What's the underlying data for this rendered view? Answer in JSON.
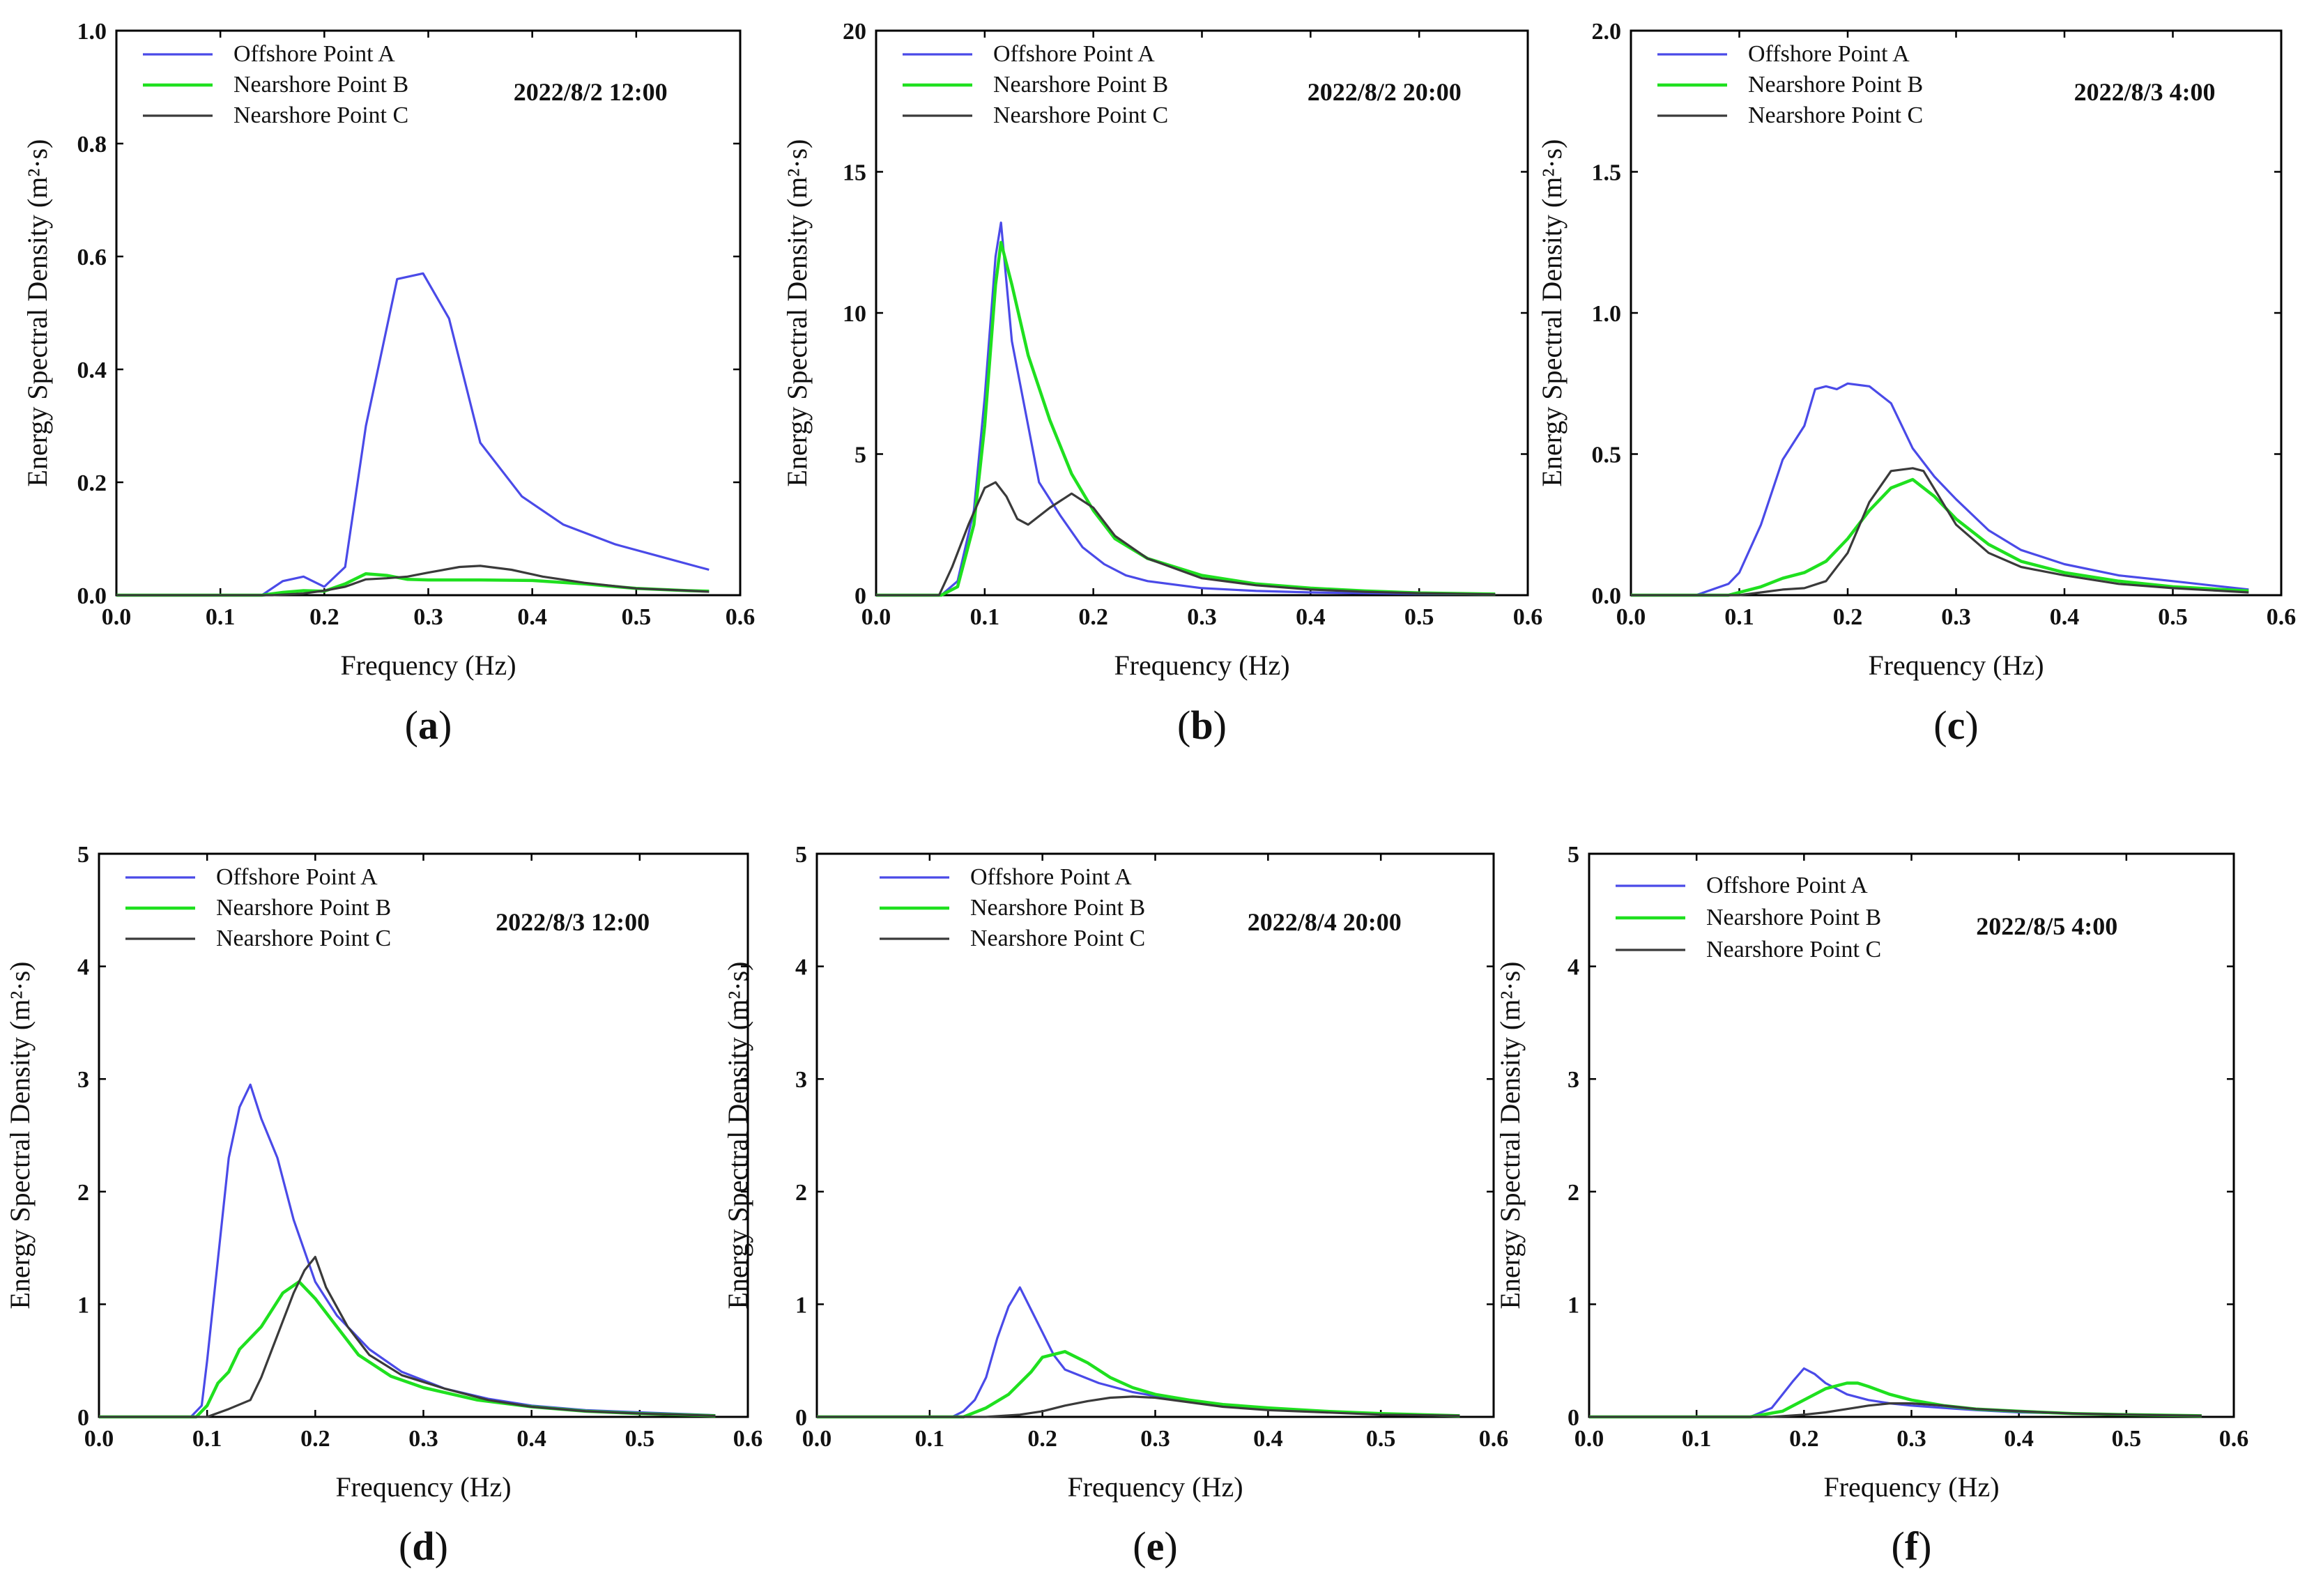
{
  "colors": {
    "series_a": "#4a4ae8",
    "series_b": "#1fe01f",
    "series_c": "#3a3a3a"
  },
  "legend": [
    "Offshore Point A",
    "Nearshore Point B",
    "Nearshore Point C"
  ],
  "chart_data": [
    {
      "type": "line",
      "panel": "a",
      "timestamp": "2022/8/2 12:00",
      "xlabel": "Frequency (Hz)",
      "ylabel": "Energy Spectral Density (m²·s)",
      "xlim": [
        0,
        0.6
      ],
      "ylim": [
        0,
        1.0
      ],
      "xticks": [
        "0.0",
        "0.1",
        "0.2",
        "0.3",
        "0.4",
        "0.5",
        "0.6"
      ],
      "yticks": [
        "0.0",
        "0.2",
        "0.4",
        "0.6",
        "0.8",
        "1.0"
      ],
      "series": [
        {
          "name": "Offshore Point A",
          "x": [
            0,
            0.14,
            0.16,
            0.18,
            0.2,
            0.22,
            0.24,
            0.27,
            0.295,
            0.32,
            0.35,
            0.39,
            0.43,
            0.48,
            0.52,
            0.56,
            0.57
          ],
          "y": [
            0,
            0,
            0.025,
            0.033,
            0.015,
            0.05,
            0.3,
            0.56,
            0.57,
            0.49,
            0.27,
            0.175,
            0.125,
            0.09,
            0.07,
            0.05,
            0.045
          ]
        },
        {
          "name": "Nearshore Point B",
          "x": [
            0,
            0.14,
            0.16,
            0.18,
            0.2,
            0.22,
            0.24,
            0.26,
            0.28,
            0.3,
            0.35,
            0.4,
            0.45,
            0.5,
            0.55,
            0.57
          ],
          "y": [
            0,
            0,
            0.005,
            0.008,
            0.007,
            0.02,
            0.038,
            0.035,
            0.028,
            0.027,
            0.027,
            0.026,
            0.02,
            0.012,
            0.008,
            0.007
          ]
        },
        {
          "name": "Nearshore Point C",
          "x": [
            0,
            0.15,
            0.18,
            0.2,
            0.22,
            0.24,
            0.26,
            0.28,
            0.3,
            0.33,
            0.35,
            0.38,
            0.41,
            0.45,
            0.5,
            0.55,
            0.57
          ],
          "y": [
            0,
            0,
            0.003,
            0.008,
            0.015,
            0.028,
            0.03,
            0.033,
            0.04,
            0.05,
            0.052,
            0.045,
            0.033,
            0.022,
            0.012,
            0.008,
            0.006
          ]
        }
      ]
    },
    {
      "type": "line",
      "panel": "b",
      "timestamp": "2022/8/2 20:00",
      "xlabel": "Frequency (Hz)",
      "ylabel": "Energy Spectral Density (m²·s)",
      "xlim": [
        0,
        0.6
      ],
      "ylim": [
        0,
        20
      ],
      "xticks": [
        "0.0",
        "0.1",
        "0.2",
        "0.3",
        "0.4",
        "0.5",
        "0.6"
      ],
      "yticks": [
        "0",
        "5",
        "10",
        "15",
        "20"
      ],
      "series": [
        {
          "name": "Offshore Point A",
          "x": [
            0,
            0.06,
            0.075,
            0.09,
            0.1,
            0.11,
            0.115,
            0.125,
            0.14,
            0.15,
            0.17,
            0.19,
            0.21,
            0.23,
            0.25,
            0.3,
            0.35,
            0.4,
            0.45,
            0.5,
            0.57
          ],
          "y": [
            0,
            0,
            0.5,
            3,
            7,
            12,
            13.2,
            9,
            6,
            4,
            2.8,
            1.7,
            1.1,
            0.7,
            0.5,
            0.25,
            0.15,
            0.1,
            0.07,
            0.05,
            0.03
          ]
        },
        {
          "name": "Nearshore Point B",
          "x": [
            0,
            0.06,
            0.075,
            0.09,
            0.1,
            0.11,
            0.115,
            0.125,
            0.14,
            0.16,
            0.18,
            0.2,
            0.22,
            0.25,
            0.3,
            0.35,
            0.4,
            0.45,
            0.5,
            0.57
          ],
          "y": [
            0,
            0,
            0.3,
            2.5,
            6,
            11,
            12.5,
            11,
            8.5,
            6.2,
            4.3,
            3,
            2,
            1.3,
            0.7,
            0.4,
            0.25,
            0.15,
            0.08,
            0.04
          ]
        },
        {
          "name": "Nearshore Point C",
          "x": [
            0,
            0.058,
            0.07,
            0.085,
            0.1,
            0.11,
            0.12,
            0.13,
            0.14,
            0.16,
            0.18,
            0.2,
            0.22,
            0.25,
            0.3,
            0.35,
            0.4,
            0.45,
            0.5,
            0.57
          ],
          "y": [
            0,
            0,
            1,
            2.5,
            3.8,
            4,
            3.5,
            2.7,
            2.5,
            3.1,
            3.6,
            3.1,
            2.1,
            1.3,
            0.6,
            0.35,
            0.2,
            0.12,
            0.07,
            0.03
          ]
        }
      ]
    },
    {
      "type": "line",
      "panel": "c",
      "timestamp": "2022/8/3 4:00",
      "xlabel": "Frequency (Hz)",
      "ylabel": "Energy Spectral Density (m²·s)",
      "xlim": [
        0,
        0.6
      ],
      "ylim": [
        0,
        2.0
      ],
      "xticks": [
        "0.0",
        "0.1",
        "0.2",
        "0.3",
        "0.4",
        "0.5",
        "0.6"
      ],
      "yticks": [
        "0.0",
        "0.5",
        "1.0",
        "1.5",
        "2.0"
      ],
      "series": [
        {
          "name": "Offshore Point A",
          "x": [
            0,
            0.06,
            0.09,
            0.1,
            0.12,
            0.14,
            0.16,
            0.17,
            0.18,
            0.19,
            0.2,
            0.22,
            0.24,
            0.26,
            0.28,
            0.3,
            0.33,
            0.36,
            0.4,
            0.45,
            0.5,
            0.57
          ],
          "y": [
            0,
            0,
            0.04,
            0.08,
            0.25,
            0.48,
            0.6,
            0.73,
            0.74,
            0.73,
            0.75,
            0.74,
            0.68,
            0.52,
            0.42,
            0.34,
            0.23,
            0.16,
            0.11,
            0.07,
            0.05,
            0.02
          ]
        },
        {
          "name": "Nearshore Point B",
          "x": [
            0,
            0.09,
            0.12,
            0.14,
            0.16,
            0.18,
            0.2,
            0.22,
            0.24,
            0.26,
            0.28,
            0.3,
            0.33,
            0.36,
            0.4,
            0.45,
            0.5,
            0.57
          ],
          "y": [
            0,
            0,
            0.03,
            0.06,
            0.08,
            0.12,
            0.2,
            0.3,
            0.38,
            0.41,
            0.35,
            0.27,
            0.18,
            0.12,
            0.08,
            0.05,
            0.03,
            0.015
          ]
        },
        {
          "name": "Nearshore Point C",
          "x": [
            0,
            0.1,
            0.14,
            0.16,
            0.18,
            0.2,
            0.22,
            0.24,
            0.26,
            0.27,
            0.3,
            0.33,
            0.36,
            0.4,
            0.45,
            0.5,
            0.57
          ],
          "y": [
            0,
            0,
            0.02,
            0.025,
            0.05,
            0.15,
            0.33,
            0.44,
            0.45,
            0.44,
            0.25,
            0.15,
            0.1,
            0.07,
            0.04,
            0.025,
            0.01
          ]
        }
      ]
    },
    {
      "type": "line",
      "panel": "d",
      "timestamp": "2022/8/3 12:00",
      "xlabel": "Frequency (Hz)",
      "ylabel": "Energy Spectral Density (m²·s)",
      "xlim": [
        0,
        0.6
      ],
      "ylim": [
        0,
        5
      ],
      "xticks": [
        "0.0",
        "0.1",
        "0.2",
        "0.3",
        "0.4",
        "0.5",
        "0.6"
      ],
      "yticks": [
        "0",
        "1",
        "2",
        "3",
        "4",
        "5"
      ],
      "series": [
        {
          "name": "Offshore Point A",
          "x": [
            0,
            0.085,
            0.095,
            0.1,
            0.11,
            0.12,
            0.13,
            0.14,
            0.15,
            0.165,
            0.18,
            0.2,
            0.22,
            0.25,
            0.28,
            0.32,
            0.36,
            0.4,
            0.45,
            0.5,
            0.57
          ],
          "y": [
            0,
            0,
            0.1,
            0.5,
            1.4,
            2.3,
            2.75,
            2.95,
            2.65,
            2.3,
            1.75,
            1.2,
            0.9,
            0.6,
            0.4,
            0.25,
            0.16,
            0.1,
            0.06,
            0.04,
            0.015
          ]
        },
        {
          "name": "Nearshore Point B",
          "x": [
            0,
            0.09,
            0.1,
            0.11,
            0.12,
            0.13,
            0.15,
            0.17,
            0.185,
            0.2,
            0.22,
            0.24,
            0.27,
            0.3,
            0.35,
            0.4,
            0.45,
            0.5,
            0.57
          ],
          "y": [
            0,
            0,
            0.1,
            0.3,
            0.4,
            0.6,
            0.8,
            1.1,
            1.2,
            1.05,
            0.8,
            0.55,
            0.36,
            0.26,
            0.15,
            0.09,
            0.05,
            0.03,
            0.01
          ]
        },
        {
          "name": "Nearshore Point C",
          "x": [
            0,
            0.1,
            0.12,
            0.14,
            0.15,
            0.16,
            0.17,
            0.18,
            0.19,
            0.2,
            0.21,
            0.23,
            0.25,
            0.28,
            0.32,
            0.36,
            0.4,
            0.45,
            0.5,
            0.57
          ],
          "y": [
            0,
            0,
            0.07,
            0.15,
            0.35,
            0.6,
            0.85,
            1.1,
            1.3,
            1.42,
            1.15,
            0.8,
            0.55,
            0.37,
            0.25,
            0.15,
            0.09,
            0.05,
            0.03,
            0.01
          ]
        }
      ]
    },
    {
      "type": "line",
      "panel": "e",
      "timestamp": "2022/8/4 20:00",
      "xlabel": "Frequency (Hz)",
      "ylabel": "Energy Spectral Density (m²·s)",
      "xlim": [
        0,
        0.6
      ],
      "ylim": [
        0,
        5
      ],
      "xticks": [
        "0.0",
        "0.1",
        "0.2",
        "0.3",
        "0.4",
        "0.5",
        "0.6"
      ],
      "yticks": [
        "0",
        "1",
        "2",
        "3",
        "4",
        "5"
      ],
      "series": [
        {
          "name": "Offshore Point A",
          "x": [
            0,
            0.12,
            0.13,
            0.14,
            0.15,
            0.16,
            0.17,
            0.18,
            0.19,
            0.2,
            0.21,
            0.22,
            0.25,
            0.28,
            0.32,
            0.36,
            0.4,
            0.45,
            0.5,
            0.57
          ],
          "y": [
            0,
            0,
            0.05,
            0.15,
            0.35,
            0.7,
            0.98,
            1.15,
            0.95,
            0.75,
            0.55,
            0.42,
            0.3,
            0.22,
            0.15,
            0.1,
            0.07,
            0.05,
            0.03,
            0.01
          ]
        },
        {
          "name": "Nearshore Point B",
          "x": [
            0,
            0.13,
            0.15,
            0.17,
            0.19,
            0.2,
            0.22,
            0.24,
            0.26,
            0.28,
            0.3,
            0.33,
            0.36,
            0.4,
            0.45,
            0.5,
            0.57
          ],
          "y": [
            0,
            0,
            0.08,
            0.2,
            0.4,
            0.53,
            0.58,
            0.48,
            0.35,
            0.26,
            0.2,
            0.15,
            0.11,
            0.08,
            0.05,
            0.03,
            0.01
          ]
        },
        {
          "name": "Nearshore Point C",
          "x": [
            0,
            0.15,
            0.18,
            0.2,
            0.22,
            0.24,
            0.26,
            0.28,
            0.3,
            0.33,
            0.36,
            0.4,
            0.45,
            0.5,
            0.57
          ],
          "y": [
            0,
            0,
            0.02,
            0.05,
            0.1,
            0.14,
            0.17,
            0.18,
            0.17,
            0.13,
            0.09,
            0.06,
            0.04,
            0.02,
            0.01
          ]
        }
      ]
    },
    {
      "type": "line",
      "panel": "f",
      "timestamp": "2022/8/5 4:00",
      "xlabel": "Frequency (Hz)",
      "ylabel": "Energy Spectral Density (m²·s)",
      "xlim": [
        0,
        0.6
      ],
      "ylim": [
        0,
        5
      ],
      "xticks": [
        "0.0",
        "0.1",
        "0.2",
        "0.3",
        "0.4",
        "0.5",
        "0.6"
      ],
      "yticks": [
        "0",
        "1",
        "2",
        "3",
        "4",
        "5"
      ],
      "series": [
        {
          "name": "Offshore Point A",
          "x": [
            0,
            0.15,
            0.17,
            0.18,
            0.19,
            0.2,
            0.21,
            0.22,
            0.24,
            0.26,
            0.28,
            0.3,
            0.33,
            0.36,
            0.4,
            0.45,
            0.5,
            0.57
          ],
          "y": [
            0,
            0,
            0.08,
            0.2,
            0.32,
            0.43,
            0.38,
            0.3,
            0.2,
            0.15,
            0.12,
            0.1,
            0.08,
            0.06,
            0.04,
            0.03,
            0.02,
            0.01
          ]
        },
        {
          "name": "Nearshore Point B",
          "x": [
            0,
            0.15,
            0.18,
            0.2,
            0.22,
            0.24,
            0.25,
            0.26,
            0.28,
            0.3,
            0.33,
            0.36,
            0.4,
            0.45,
            0.5,
            0.57
          ],
          "y": [
            0,
            0,
            0.05,
            0.15,
            0.25,
            0.3,
            0.3,
            0.27,
            0.2,
            0.15,
            0.1,
            0.07,
            0.05,
            0.03,
            0.02,
            0.01
          ]
        },
        {
          "name": "Nearshore Point C",
          "x": [
            0,
            0.17,
            0.2,
            0.22,
            0.24,
            0.26,
            0.28,
            0.3,
            0.33,
            0.36,
            0.4,
            0.45,
            0.5,
            0.57
          ],
          "y": [
            0,
            0,
            0.02,
            0.04,
            0.07,
            0.1,
            0.12,
            0.12,
            0.1,
            0.07,
            0.05,
            0.03,
            0.02,
            0.01
          ]
        }
      ]
    }
  ]
}
